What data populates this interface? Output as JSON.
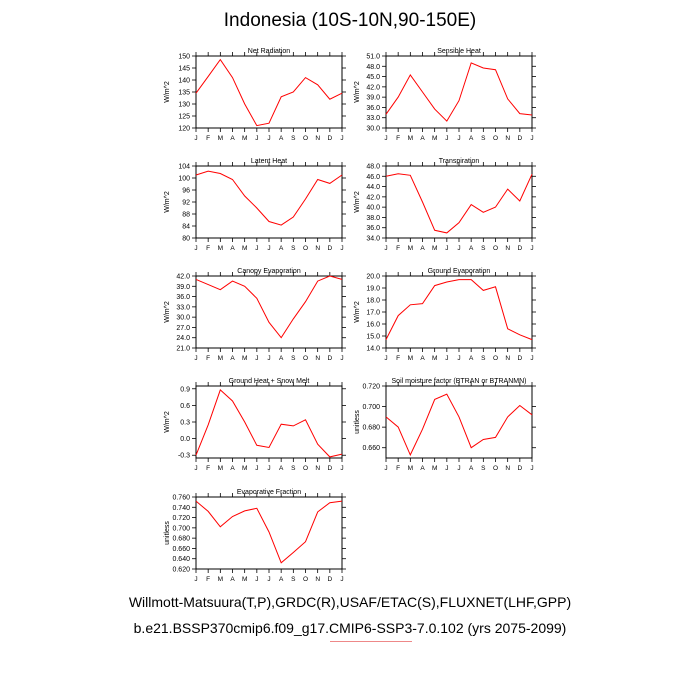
{
  "page": {
    "title": "Indonesia (10S-10N,90-150E)",
    "footer_line1": "Willmott-Matsuura(T,P),GRDC(R),USAF/ETAC(S),FLUXNET(LHF,GPP)",
    "footer_line2": "b.e21.BSSP370cmip6.f09_g17.CMIP6-SSP3-7.0.102 (yrs 2075-2099)"
  },
  "colors": {
    "line": "#ff0000",
    "axis": "#000000"
  },
  "chart_data": [
    {
      "type": "line",
      "title": "Net Radiation",
      "ylabel": "W/m^2",
      "categories": [
        "J",
        "F",
        "M",
        "A",
        "M",
        "J",
        "J",
        "A",
        "S",
        "O",
        "N",
        "D",
        "J"
      ],
      "values": [
        134.5,
        141.5,
        148.5,
        141,
        130,
        121,
        122,
        133,
        135,
        141,
        138,
        132,
        134.5
      ],
      "ylim": [
        120,
        150
      ],
      "yticks": [
        120,
        125,
        130,
        135,
        140,
        145,
        150
      ],
      "ytick_labels": [
        "120",
        "125",
        "130",
        "135",
        "140",
        "145",
        "150"
      ]
    },
    {
      "type": "line",
      "title": "Sensible Heat",
      "ylabel": "W/m^2",
      "categories": [
        "J",
        "F",
        "M",
        "A",
        "M",
        "J",
        "J",
        "A",
        "S",
        "O",
        "N",
        "D",
        "J"
      ],
      "values": [
        34,
        39,
        45.5,
        40.5,
        35.5,
        32,
        38,
        49,
        47.5,
        47,
        38.5,
        34.2,
        33.8
      ],
      "ylim": [
        30,
        51
      ],
      "yticks": [
        30,
        33,
        36,
        39,
        42,
        45,
        48,
        51
      ],
      "ytick_labels": [
        "30.0",
        "33.0",
        "36.0",
        "39.0",
        "42.0",
        "45.0",
        "48.0",
        "51.0"
      ]
    },
    {
      "type": "line",
      "title": "Latent Heat",
      "ylabel": "W/m^2",
      "categories": [
        "J",
        "F",
        "M",
        "A",
        "M",
        "J",
        "J",
        "A",
        "S",
        "O",
        "N",
        "D",
        "J"
      ],
      "values": [
        101,
        102.3,
        101.5,
        99.5,
        94,
        90,
        85.5,
        84.3,
        87,
        93,
        99.5,
        98.2,
        101
      ],
      "ylim": [
        80,
        104
      ],
      "yticks": [
        80,
        84,
        88,
        92,
        96,
        100,
        104
      ],
      "ytick_labels": [
        "80",
        "84",
        "88",
        "92",
        "96",
        "100",
        "104"
      ]
    },
    {
      "type": "line",
      "title": "Transpiration",
      "ylabel": "W/m^2",
      "categories": [
        "J",
        "F",
        "M",
        "A",
        "M",
        "J",
        "J",
        "A",
        "S",
        "O",
        "N",
        "D",
        "J"
      ],
      "values": [
        46,
        46.5,
        46.2,
        41,
        35.5,
        35,
        37,
        40.5,
        39,
        40,
        43.5,
        41.2,
        46.4
      ],
      "ylim": [
        34,
        48
      ],
      "yticks": [
        34,
        36,
        38,
        40,
        42,
        44,
        46,
        48
      ],
      "ytick_labels": [
        "34.0",
        "36.0",
        "38.0",
        "40.0",
        "42.0",
        "44.0",
        "46.0",
        "48.0"
      ]
    },
    {
      "type": "line",
      "title": "Canopy Evaporation",
      "ylabel": "W/m^2",
      "categories": [
        "J",
        "F",
        "M",
        "A",
        "M",
        "J",
        "J",
        "A",
        "S",
        "O",
        "N",
        "D",
        "J"
      ],
      "values": [
        41,
        39.5,
        38,
        40.5,
        39,
        35.5,
        28.5,
        24,
        29.5,
        34.5,
        40.5,
        42,
        41
      ],
      "ylim": [
        21,
        42
      ],
      "yticks": [
        21,
        24,
        27,
        30,
        33,
        36,
        39,
        42
      ],
      "ytick_labels": [
        "21.0",
        "24.0",
        "27.0",
        "30.0",
        "33.0",
        "36.0",
        "39.0",
        "42.0"
      ]
    },
    {
      "type": "line",
      "title": "Ground Evaporation",
      "ylabel": "W/m^2",
      "categories": [
        "J",
        "F",
        "M",
        "A",
        "M",
        "J",
        "J",
        "A",
        "S",
        "O",
        "N",
        "D",
        "J"
      ],
      "values": [
        14.7,
        16.7,
        17.6,
        17.7,
        19.2,
        19.5,
        19.7,
        19.7,
        18.8,
        19.1,
        15.6,
        15.1,
        14.7
      ],
      "ylim": [
        14,
        20
      ],
      "yticks": [
        14,
        15,
        16,
        17,
        18,
        19,
        20
      ],
      "ytick_labels": [
        "14.0",
        "15.0",
        "16.0",
        "17.0",
        "18.0",
        "19.0",
        "20.0"
      ]
    },
    {
      "type": "line",
      "title": "Ground Heat + Snow Melt",
      "ylabel": "W/m^2",
      "categories": [
        "J",
        "F",
        "M",
        "A",
        "M",
        "J",
        "J",
        "A",
        "S",
        "O",
        "N",
        "D",
        "J"
      ],
      "values": [
        -0.3,
        0.25,
        0.88,
        0.68,
        0.3,
        -0.12,
        -0.16,
        0.26,
        0.23,
        0.34,
        -0.1,
        -0.33,
        -0.28
      ],
      "ylim": [
        -0.35,
        0.95
      ],
      "yticks": [
        -0.3,
        0,
        0.3,
        0.6,
        0.9
      ],
      "ytick_labels": [
        "-0.3",
        "0.0",
        "0.3",
        "0.6",
        "0.9"
      ]
    },
    {
      "type": "line",
      "title": "Soil moisture factor (BTRAN or BTRANMN)",
      "ylabel": "unitless",
      "categories": [
        "J",
        "F",
        "M",
        "A",
        "M",
        "J",
        "J",
        "A",
        "S",
        "O",
        "N",
        "D",
        "J"
      ],
      "values": [
        0.69,
        0.68,
        0.653,
        0.678,
        0.707,
        0.712,
        0.69,
        0.66,
        0.668,
        0.67,
        0.69,
        0.701,
        0.692
      ],
      "ylim": [
        0.65,
        0.72
      ],
      "yticks": [
        0.66,
        0.68,
        0.7,
        0.72
      ],
      "ytick_labels": [
        "0.660",
        "0.680",
        "0.700",
        "0.720"
      ]
    },
    {
      "type": "line",
      "title": "Evaporative Fraction",
      "ylabel": "unitless",
      "categories": [
        "J",
        "F",
        "M",
        "A",
        "M",
        "J",
        "J",
        "A",
        "S",
        "O",
        "N",
        "D",
        "J"
      ],
      "values": [
        0.752,
        0.732,
        0.702,
        0.722,
        0.733,
        0.738,
        0.692,
        0.632,
        0.652,
        0.673,
        0.731,
        0.749,
        0.752
      ],
      "ylim": [
        0.62,
        0.76
      ],
      "yticks": [
        0.62,
        0.64,
        0.66,
        0.68,
        0.7,
        0.72,
        0.74,
        0.76
      ],
      "ytick_labels": [
        "0.620",
        "0.640",
        "0.660",
        "0.680",
        "0.700",
        "0.720",
        "0.740",
        "0.760"
      ]
    }
  ]
}
